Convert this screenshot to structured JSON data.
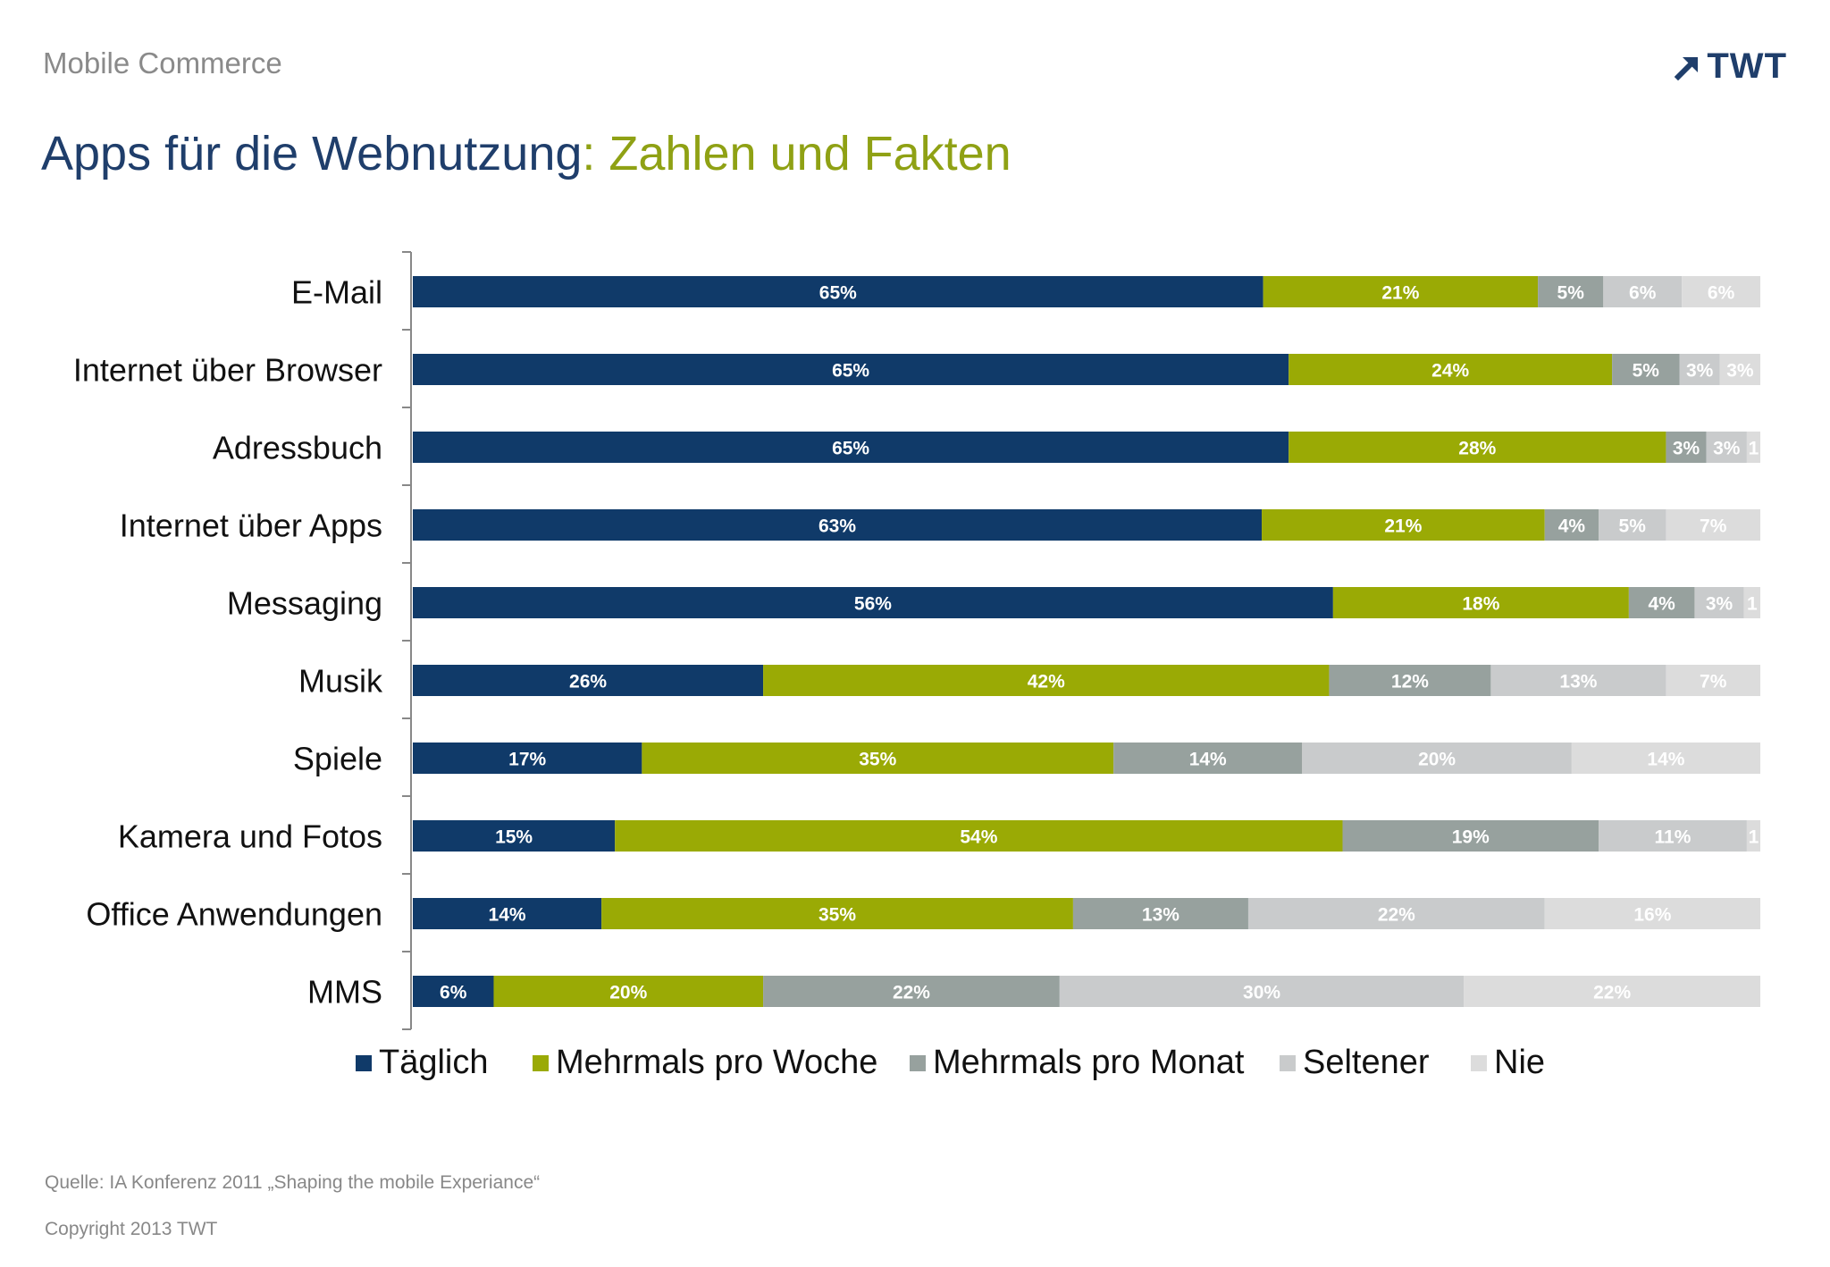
{
  "header": {
    "section_label": "Mobile Commerce",
    "logo_text": "TWT",
    "logo_icon": "arrow-up-right-icon",
    "title_main": "Apps für die Webnutzung",
    "title_sub": ": Zahlen und Fakten"
  },
  "colors": {
    "title_main": "#1f3e6b",
    "title_sub": "#8fa114",
    "series": [
      "#103a69",
      "#9aaa05",
      "#97a19e",
      "#c9cbcc",
      "#dcdcdc"
    ]
  },
  "chart_data": {
    "type": "bar",
    "orientation": "horizontal",
    "stacked": true,
    "categories": [
      "E-Mail",
      "Internet über Browser",
      "Adressbuch",
      "Internet über Apps",
      "Messaging",
      "Musik",
      "Spiele",
      "Kamera und Fotos",
      "Office Anwendungen",
      "MMS"
    ],
    "series": [
      {
        "name": "Täglich",
        "values": [
          65,
          65,
          65,
          63,
          56,
          26,
          17,
          15,
          14,
          6
        ],
        "labels": [
          "65%",
          "65%",
          "65%",
          "63%",
          "56%",
          "26%",
          "17%",
          "15%",
          "14%",
          "6%"
        ]
      },
      {
        "name": "Mehrmals pro Woche",
        "values": [
          21,
          24,
          28,
          21,
          18,
          42,
          35,
          54,
          35,
          20
        ],
        "labels": [
          "21%",
          "24%",
          "28%",
          "21%",
          "18%",
          "42%",
          "35%",
          "54%",
          "35%",
          "20%"
        ]
      },
      {
        "name": "Mehrmals pro Monat",
        "values": [
          5,
          5,
          3,
          4,
          4,
          12,
          14,
          19,
          13,
          22
        ],
        "labels": [
          "5%",
          "5%",
          "3%",
          "4%",
          "4%",
          "12%",
          "14%",
          "19%",
          "13%",
          "22%"
        ]
      },
      {
        "name": "Seltener",
        "values": [
          6,
          3,
          3,
          5,
          3,
          13,
          20,
          11,
          22,
          30
        ],
        "labels": [
          "6%",
          "3%",
          "3%",
          "5%",
          "3%",
          "13%",
          "20%",
          "11%",
          "22%",
          "30%"
        ]
      },
      {
        "name": "Nie",
        "values": [
          6,
          3,
          1,
          7,
          1,
          7,
          14,
          1,
          16,
          22
        ],
        "labels": [
          "6%",
          "3%",
          "1",
          "7%",
          "1",
          "7%",
          "14%",
          "1",
          "16%",
          "22%"
        ]
      }
    ],
    "legend_position": "bottom",
    "grid": false
  },
  "footer": {
    "source": "Quelle: IA Konferenz 2011 „Shaping the mobile Experiance“",
    "copyright": "Copyright 2013 TWT"
  }
}
